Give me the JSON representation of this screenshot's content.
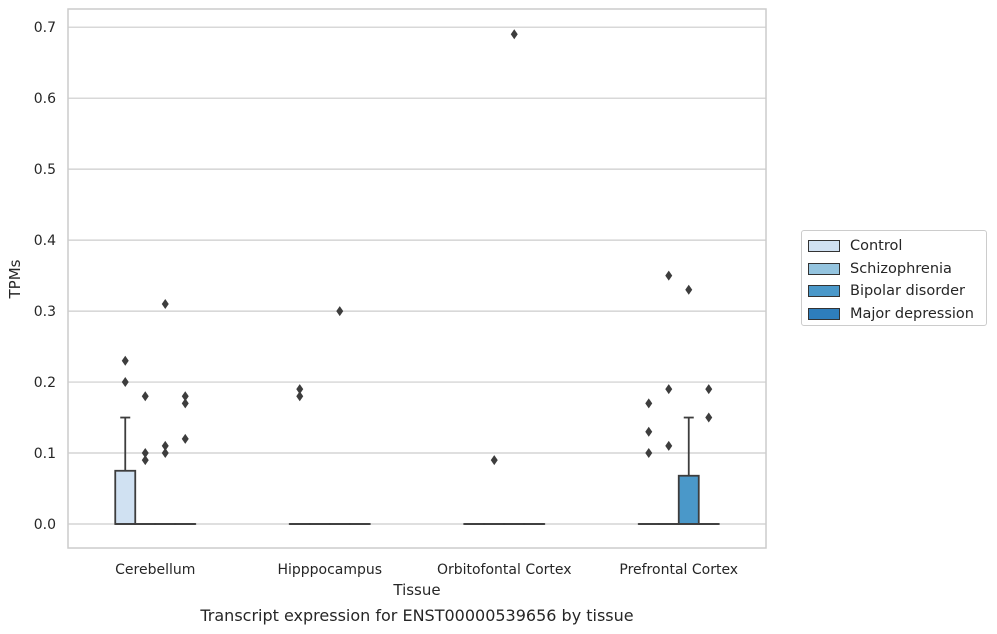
{
  "chart_data": {
    "type": "box",
    "ylabel": "TPMs",
    "xlabel": "Tissue",
    "caption": "Transcript expression for ENST00000539656 by tissue",
    "categories": [
      "Cerebellum",
      "Hipppocampus",
      "Orbitofontal Cortex",
      "Prefrontal Cortex"
    ],
    "yticks": [
      "0.0",
      "0.1",
      "0.2",
      "0.3",
      "0.4",
      "0.5",
      "0.6",
      "0.7"
    ],
    "ylim": [
      -0.035,
      0.725
    ],
    "grid": true,
    "legend_position": "right",
    "series": [
      {
        "name": "Control",
        "color": "#d0e1f2",
        "boxes": [
          {
            "q1": 0,
            "median": 0,
            "q3": 0.075,
            "whisker_low": 0,
            "whisker_high": 0.15,
            "outliers": [
              0.23,
              0.2
            ]
          },
          {
            "q1": 0,
            "median": 0,
            "q3": 0,
            "whisker_low": 0,
            "whisker_high": 0,
            "outliers": [
              0.19,
              0.18
            ]
          },
          {
            "q1": 0,
            "median": 0,
            "q3": 0,
            "whisker_low": 0,
            "whisker_high": 0,
            "outliers": []
          },
          {
            "q1": 0,
            "median": 0,
            "q3": 0,
            "whisker_low": 0,
            "whisker_high": 0,
            "outliers": [
              0.17,
              0.13,
              0.1
            ]
          }
        ]
      },
      {
        "name": "Schizophrenia",
        "color": "#94c4df",
        "boxes": [
          {
            "q1": 0,
            "median": 0,
            "q3": 0,
            "whisker_low": 0,
            "whisker_high": 0,
            "outliers": [
              0.18,
              0.1,
              0.09
            ]
          },
          {
            "q1": 0,
            "median": 0,
            "q3": 0,
            "whisker_low": 0,
            "whisker_high": 0,
            "outliers": []
          },
          {
            "q1": 0,
            "median": 0,
            "q3": 0,
            "whisker_low": 0,
            "whisker_high": 0,
            "outliers": [
              0.09
            ]
          },
          {
            "q1": 0,
            "median": 0,
            "q3": 0,
            "whisker_low": 0,
            "whisker_high": 0,
            "outliers": [
              0.35,
              0.19,
              0.11
            ]
          }
        ]
      },
      {
        "name": "Bipolar disorder",
        "color": "#4a98c9",
        "boxes": [
          {
            "q1": 0,
            "median": 0,
            "q3": 0,
            "whisker_low": 0,
            "whisker_high": 0,
            "outliers": [
              0.31,
              0.11,
              0.1
            ]
          },
          {
            "q1": 0,
            "median": 0,
            "q3": 0,
            "whisker_low": 0,
            "whisker_high": 0,
            "outliers": [
              0.3
            ]
          },
          {
            "q1": 0,
            "median": 0,
            "q3": 0,
            "whisker_low": 0,
            "whisker_high": 0,
            "outliers": [
              0.69
            ]
          },
          {
            "q1": 0,
            "median": 0,
            "q3": 0.068,
            "whisker_low": 0,
            "whisker_high": 0.15,
            "outliers": [
              0.33
            ]
          }
        ]
      },
      {
        "name": "Major depression",
        "color": "#2e7ebc",
        "boxes": [
          {
            "q1": 0,
            "median": 0,
            "q3": 0,
            "whisker_low": 0,
            "whisker_high": 0,
            "outliers": [
              0.18,
              0.17,
              0.12
            ]
          },
          {
            "q1": 0,
            "median": 0,
            "q3": 0,
            "whisker_low": 0,
            "whisker_high": 0,
            "outliers": []
          },
          {
            "q1": 0,
            "median": 0,
            "q3": 0,
            "whisker_low": 0,
            "whisker_high": 0,
            "outliers": []
          },
          {
            "q1": 0,
            "median": 0,
            "q3": 0,
            "whisker_low": 0,
            "whisker_high": 0,
            "outliers": [
              0.19,
              0.15
            ]
          }
        ]
      }
    ]
  }
}
